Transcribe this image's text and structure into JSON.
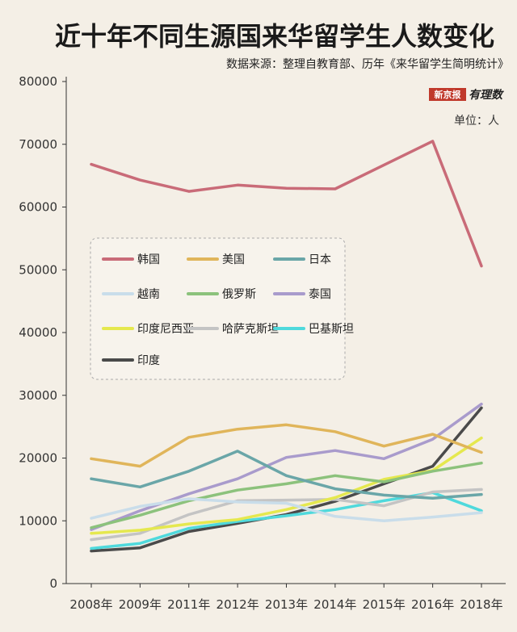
{
  "header": {
    "title": "近十年不同生源国来华留学生人数变化",
    "source": "数据来源：整理自教育部、历年《来华留学生简明统计》",
    "unit": "单位：人",
    "brand_left": "新京报",
    "brand_right": "有理数"
  },
  "chart_data": {
    "type": "line",
    "categories": [
      "2008年",
      "2009年",
      "2011年",
      "2012年",
      "2013年",
      "2014年",
      "2015年",
      "2016年",
      "2018年"
    ],
    "ylim": [
      0,
      80000
    ],
    "yticks": [
      0,
      10000,
      20000,
      30000,
      40000,
      50000,
      60000,
      70000,
      80000
    ],
    "grid": false,
    "legend_position": "center-left",
    "series": [
      {
        "name": "韩国",
        "color": "#c96b78",
        "values": [
          66800,
          64300,
          62500,
          63500,
          63000,
          62900,
          66700,
          70500,
          50600
        ]
      },
      {
        "name": "美国",
        "color": "#e0b55a",
        "values": [
          19900,
          18700,
          23300,
          24600,
          25300,
          24200,
          21900,
          23800,
          20900
        ]
      },
      {
        "name": "日本",
        "color": "#6aa6a8",
        "values": [
          16700,
          15400,
          17900,
          21100,
          17200,
          15100,
          14100,
          13600,
          14200
        ]
      },
      {
        "name": "越南",
        "color": "#c9ddea",
        "values": [
          10400,
          12300,
          13500,
          13000,
          12800,
          10700,
          10000,
          10600,
          11300
        ]
      },
      {
        "name": "俄罗斯",
        "color": "#8cc27c",
        "values": [
          8900,
          10900,
          13200,
          14900,
          15900,
          17200,
          16200,
          17900,
          19200
        ]
      },
      {
        "name": "泰国",
        "color": "#a99bcc",
        "values": [
          8600,
          11600,
          14300,
          16700,
          20100,
          21200,
          19900,
          23000,
          28600
        ]
      },
      {
        "name": "印度尼西亚",
        "color": "#e5e84e",
        "values": [
          8000,
          8500,
          9500,
          10200,
          11800,
          13700,
          16600,
          18000,
          23200
        ]
      },
      {
        "name": "哈萨克斯坦",
        "color": "#c4c4c4",
        "values": [
          7000,
          8000,
          11000,
          13200,
          13300,
          13400,
          12400,
          14600,
          15000
        ]
      },
      {
        "name": "巴基斯坦",
        "color": "#4fd9dc",
        "values": [
          5600,
          6400,
          8800,
          9900,
          10800,
          11800,
          13200,
          14500,
          11600
        ]
      },
      {
        "name": "印度",
        "color": "#4a4a4a",
        "values": [
          5200,
          5700,
          8300,
          9600,
          11000,
          13100,
          15900,
          18700,
          28000
        ]
      }
    ]
  }
}
